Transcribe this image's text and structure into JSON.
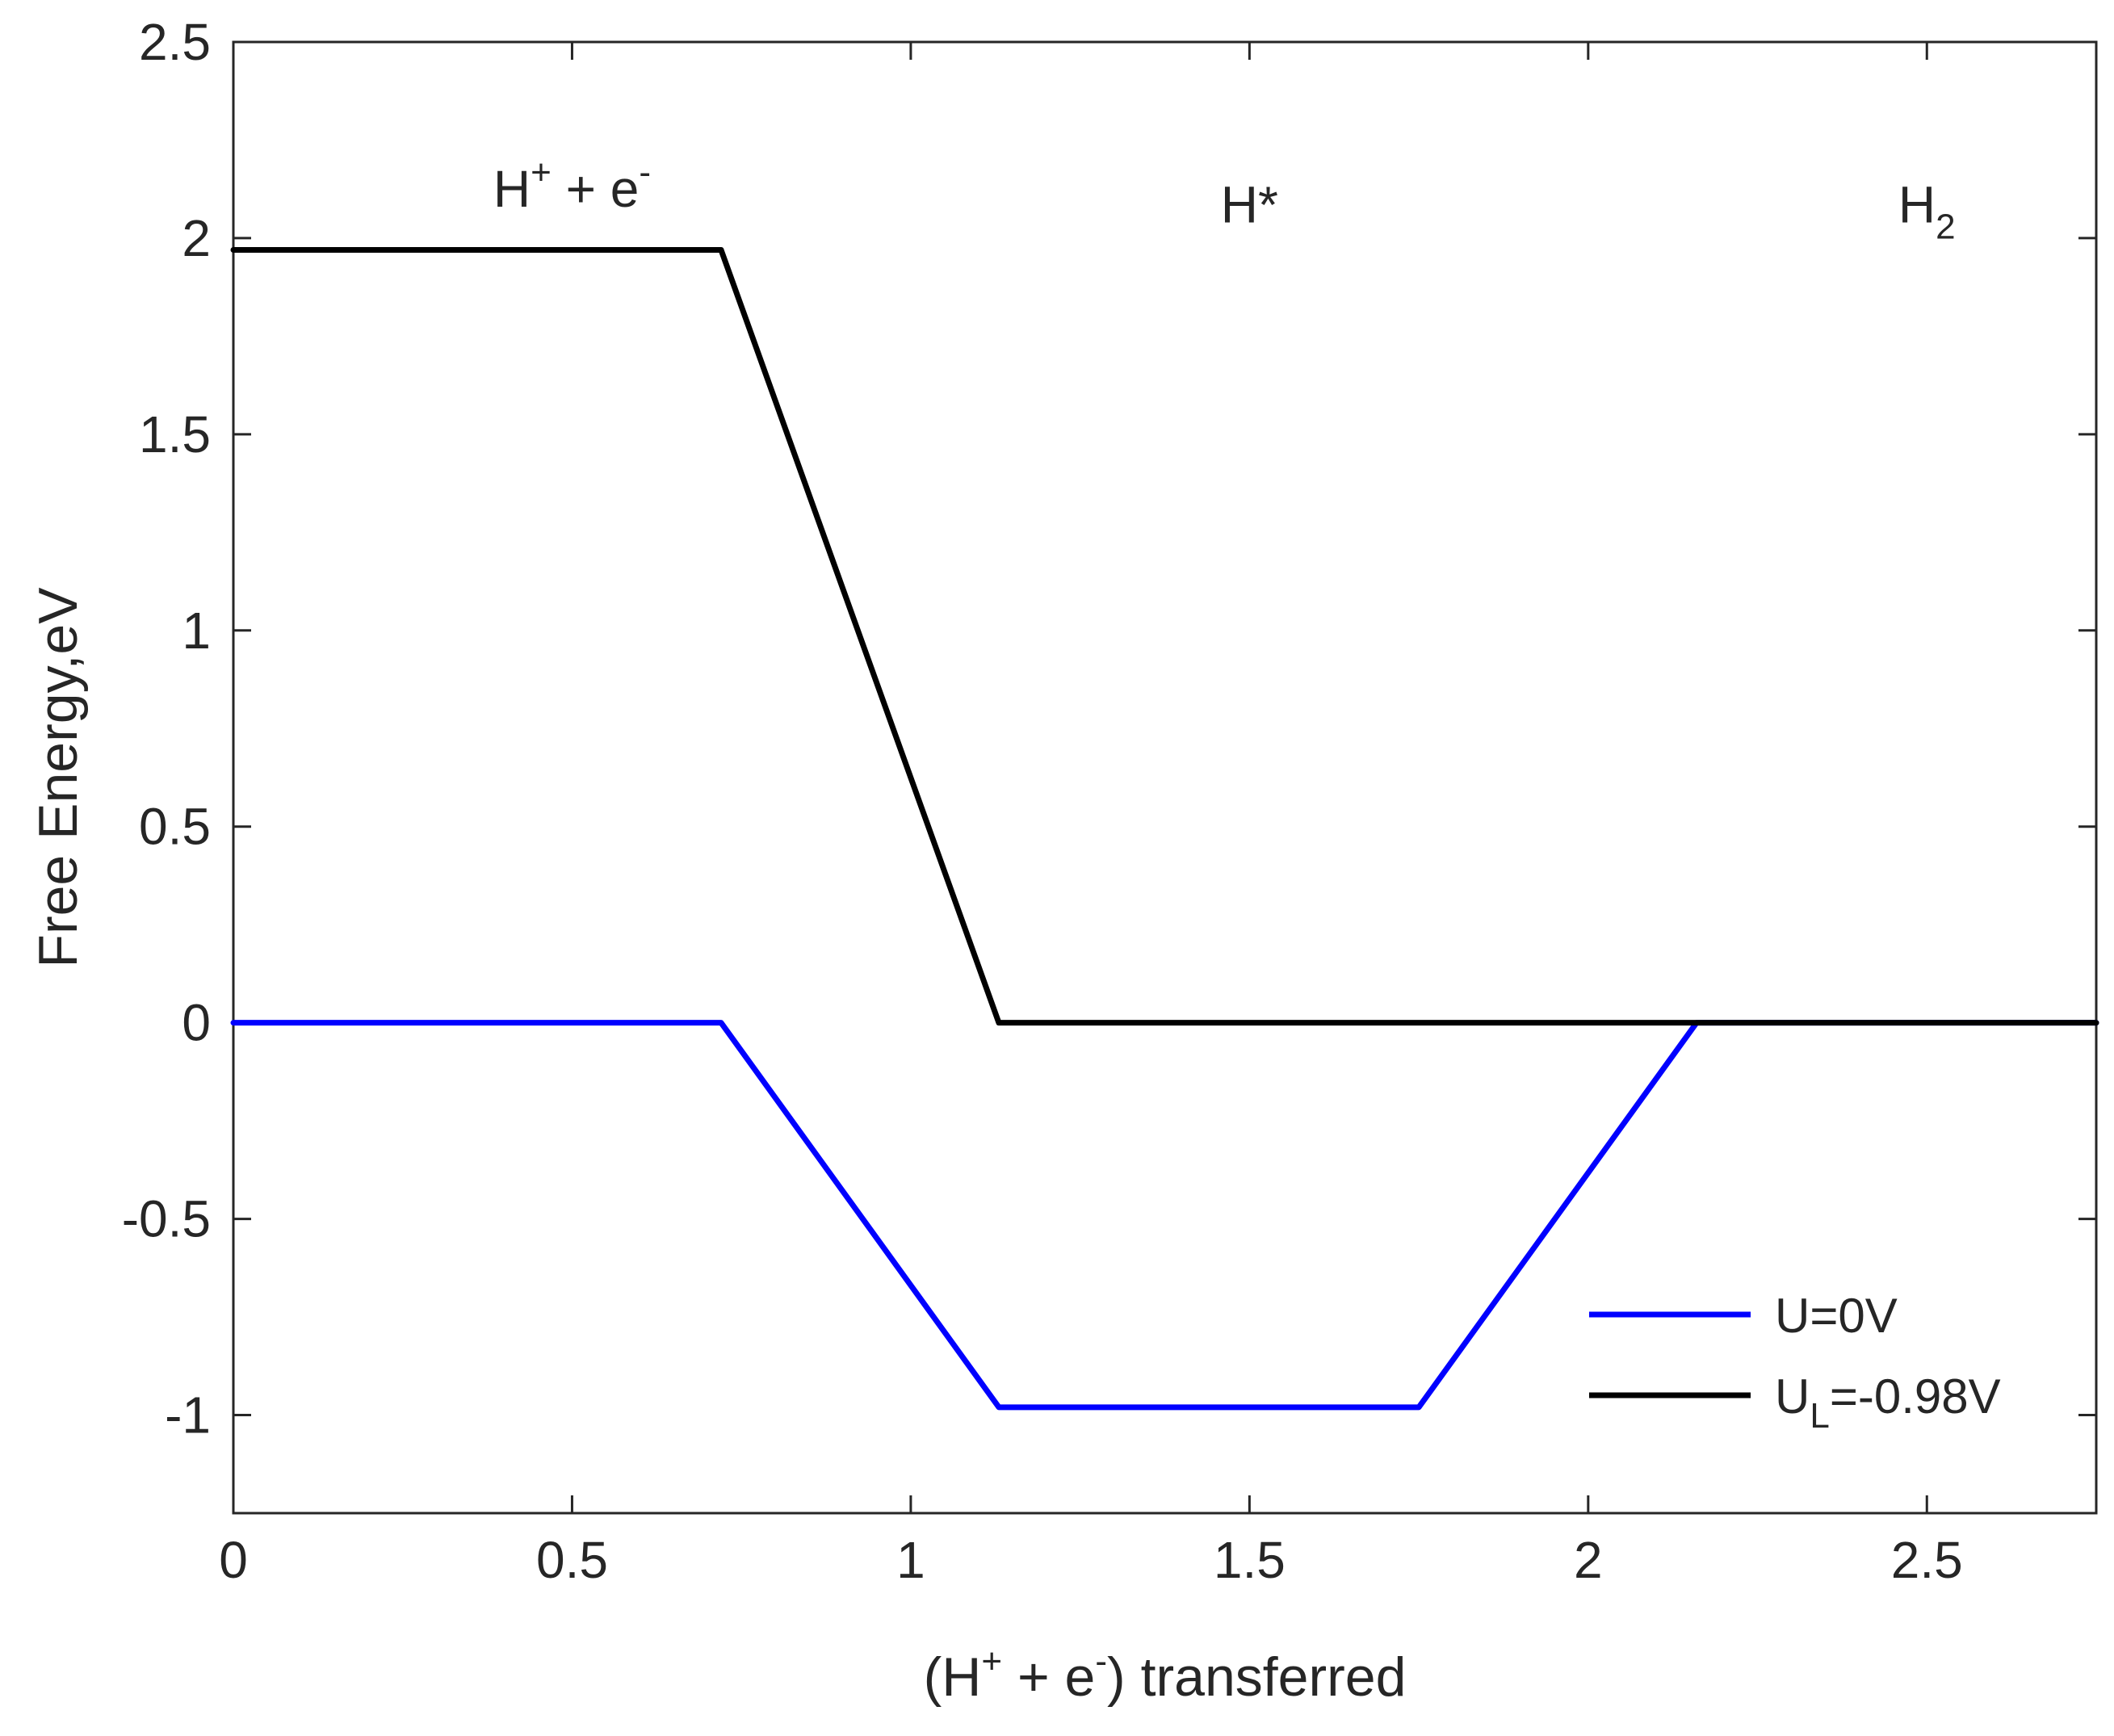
{
  "chart_data": {
    "type": "line",
    "xlabel": {
      "pre": "(H",
      "sup1": "+",
      "mid": " + e",
      "sup2": "-",
      "post": ") transferred"
    },
    "ylabel": "Free Energy,eV",
    "xlim": [
      0,
      2.75
    ],
    "ylim": [
      -1.25,
      2.5
    ],
    "xticks": [
      0,
      0.5,
      1,
      1.5,
      2,
      2.5
    ],
    "xtick_labels": [
      "0",
      "0.5",
      "1",
      "1.5",
      "2",
      "2.5"
    ],
    "yticks": [
      -1,
      -0.5,
      0,
      0.5,
      1,
      1.5,
      2,
      2.5
    ],
    "ytick_labels": [
      "-1",
      "-0.5",
      "0",
      "0.5",
      "1",
      "1.5",
      "2",
      "2.5"
    ],
    "annotations": [
      {
        "id": "h-plus-e",
        "base": "H",
        "sup1": "+",
        "mid": " + e",
        "sup2": "-",
        "x": 0.5,
        "y": 2.08
      },
      {
        "id": "h-star",
        "base": "H*",
        "x": 1.5,
        "y": 2.04
      },
      {
        "id": "h2",
        "base": "H",
        "sub": "2",
        "x": 2.5,
        "y": 2.04
      }
    ],
    "series": [
      {
        "name": "U=0V",
        "color": "#0000ff",
        "x": [
          0,
          0.72,
          1.13,
          1.75,
          2.16,
          2.75
        ],
        "y": [
          0,
          0,
          -0.98,
          -0.98,
          0,
          0
        ]
      },
      {
        "name": "U_L=-0.98V",
        "name_base": "U",
        "name_sub": "L",
        "name_rest": "=-0.98V",
        "color": "#000000",
        "x": [
          0,
          0.72,
          1.13,
          2.75
        ],
        "y": [
          1.97,
          1.97,
          0,
          0
        ]
      }
    ],
    "legend": {
      "position": "bottom-right"
    },
    "grid": false
  }
}
